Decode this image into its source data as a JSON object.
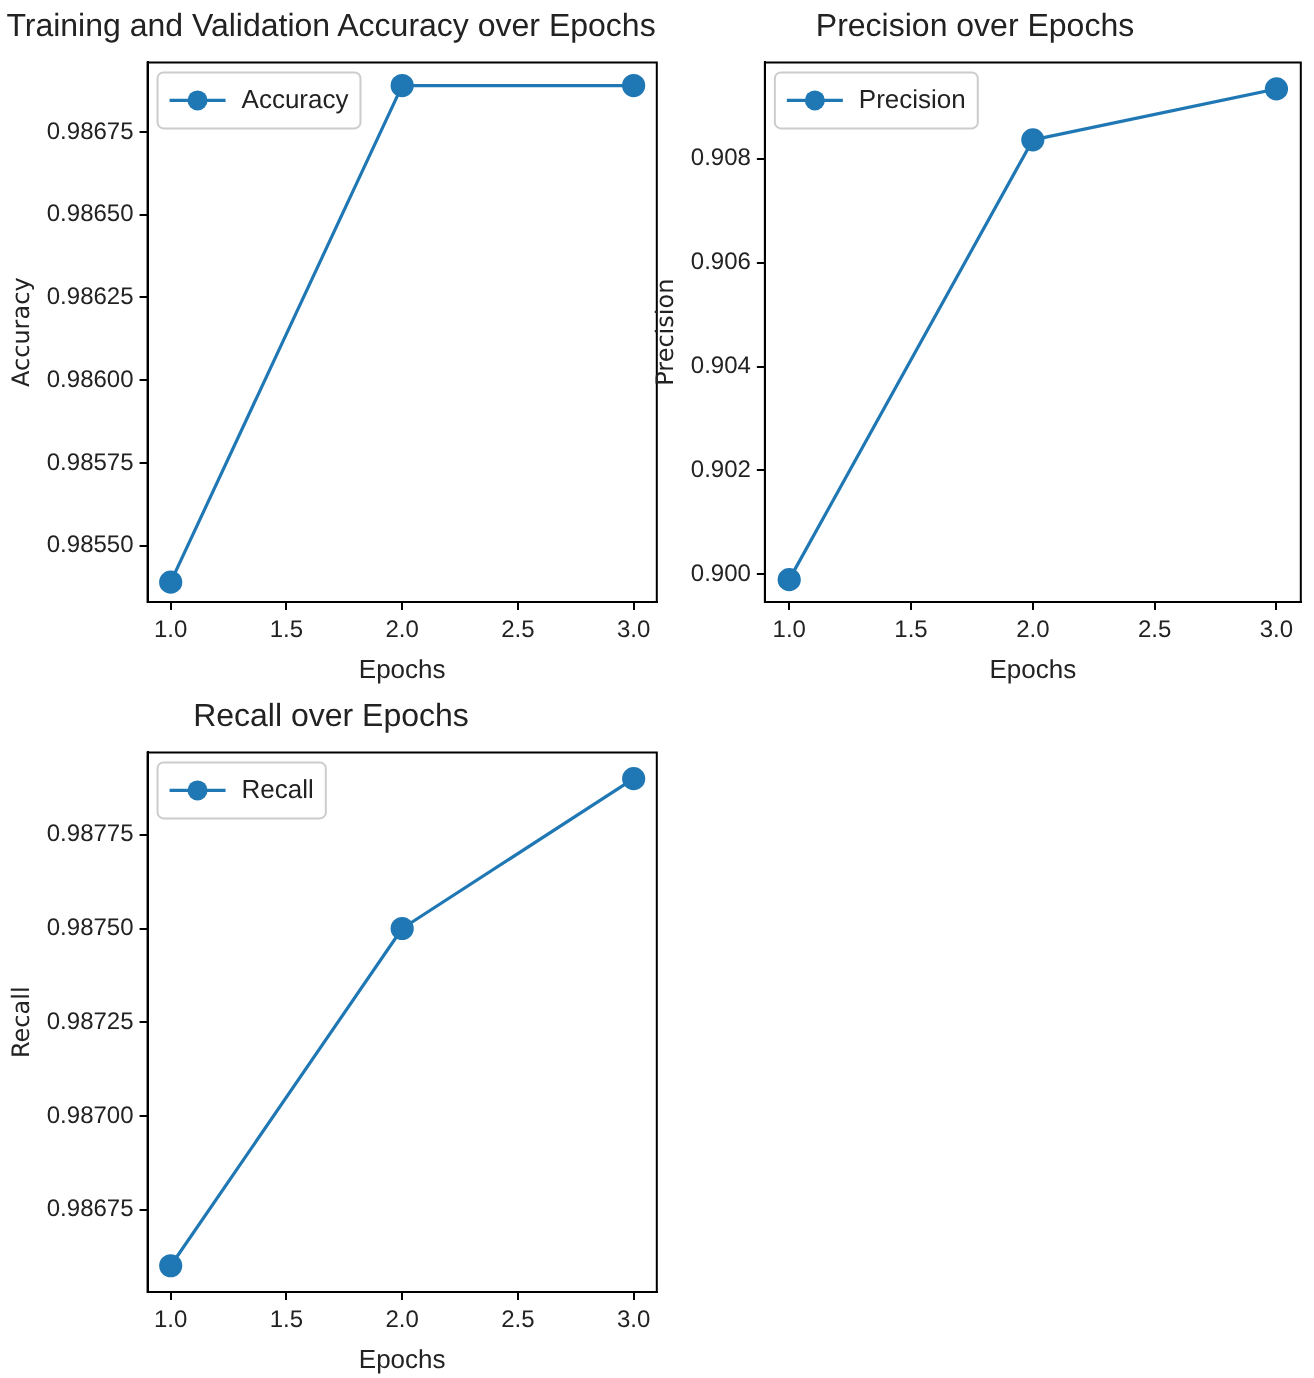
{
  "chart_data": [
    {
      "type": "line",
      "title": "Training and Validation Accuracy over Epochs",
      "xlabel": "Epochs",
      "ylabel": "Accuracy",
      "x": [
        1,
        2,
        3
      ],
      "series": [
        {
          "name": "Accuracy",
          "color": "#1f77b4",
          "values": [
            0.98539,
            0.98689,
            0.98689
          ]
        }
      ],
      "xlim": [
        0.9,
        3.1
      ],
      "xticks": [
        {
          "value": 1,
          "label": "1.0"
        },
        {
          "value": 1.5,
          "label": "1.5"
        },
        {
          "value": 2,
          "label": "2.0"
        },
        {
          "value": 2.5,
          "label": "2.5"
        },
        {
          "value": 3,
          "label": "3.0"
        }
      ],
      "ylim": [
        0.98533,
        0.98696
      ],
      "yticks": [
        {
          "value": 0.9855,
          "label": "0.98550"
        },
        0.98575,
        {
          "value": 0.986,
          "label": "0.98600"
        },
        0.98625,
        {
          "value": 0.9865,
          "label": "0.98650"
        },
        0.98675
      ],
      "marker": "circle",
      "legend": "top left",
      "grid": false
    },
    {
      "type": "line",
      "title": "Precision over Epochs",
      "xlabel": "Epochs",
      "ylabel": "Precision",
      "x": [
        1,
        2,
        3
      ],
      "series": [
        {
          "name": "Precision",
          "color": "#1f77b4",
          "values": [
            0.8999,
            0.90836,
            0.90934
          ]
        }
      ],
      "xlim": [
        0.9,
        3.1
      ],
      "xticks": [
        {
          "value": 1,
          "label": "1.0"
        },
        {
          "value": 1.5,
          "label": "1.5"
        },
        {
          "value": 2,
          "label": "2.0"
        },
        {
          "value": 2.5,
          "label": "2.5"
        },
        {
          "value": 3,
          "label": "3.0"
        }
      ],
      "ylim": [
        0.89947,
        0.90985
      ],
      "yticks": [
        {
          "value": 0.9,
          "label": "0.900"
        },
        {
          "value": 0.902,
          "label": "0.902"
        },
        {
          "value": 0.904,
          "label": "0.904"
        },
        {
          "value": 0.906,
          "label": "0.906"
        },
        {
          "value": 0.908,
          "label": "0.908"
        }
      ],
      "marker": "circle",
      "legend": "top left",
      "grid": false
    },
    {
      "type": "line",
      "title": "Recall over Epochs",
      "xlabel": "Epochs",
      "ylabel": "Recall",
      "x": [
        1,
        2,
        3
      ],
      "series": [
        {
          "name": "Recall",
          "color": "#1f77b4",
          "values": [
            0.9866,
            0.9875,
            0.9879
          ]
        }
      ],
      "xlim": [
        0.9,
        3.1
      ],
      "xticks": [
        {
          "value": 1,
          "label": "1.0"
        },
        {
          "value": 1.5,
          "label": "1.5"
        },
        {
          "value": 2,
          "label": "2.0"
        },
        {
          "value": 2.5,
          "label": "2.5"
        },
        {
          "value": 3,
          "label": "3.0"
        }
      ],
      "ylim": [
        0.98653,
        0.98797
      ],
      "yticks": [
        0.98675,
        {
          "value": 0.987,
          "label": "0.98700"
        },
        0.98725,
        {
          "value": 0.9875,
          "label": "0.98750"
        },
        0.98775
      ],
      "marker": "circle",
      "legend": "top left",
      "grid": false
    }
  ]
}
